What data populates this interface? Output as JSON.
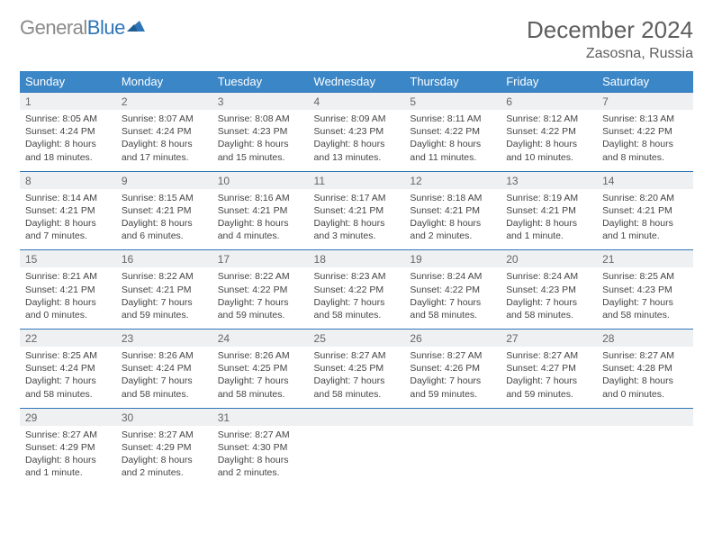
{
  "brand": {
    "gray": "General",
    "blue": "Blue"
  },
  "title": "December 2024",
  "location": "Zasosna, Russia",
  "colors": {
    "header_bg": "#3b86c6",
    "header_text": "#ffffff",
    "daynum_bg": "#eef0f1",
    "row_border": "#2f76b8",
    "body_text": "#444444",
    "title_text": "#5e5e5e",
    "logo_gray": "#8a8a8a",
    "logo_blue": "#2f76b8"
  },
  "weekdays": [
    "Sunday",
    "Monday",
    "Tuesday",
    "Wednesday",
    "Thursday",
    "Friday",
    "Saturday"
  ],
  "weeks": [
    [
      {
        "n": "1",
        "sunrise": "8:05 AM",
        "sunset": "4:24 PM",
        "daylight": "8 hours and 18 minutes."
      },
      {
        "n": "2",
        "sunrise": "8:07 AM",
        "sunset": "4:24 PM",
        "daylight": "8 hours and 17 minutes."
      },
      {
        "n": "3",
        "sunrise": "8:08 AM",
        "sunset": "4:23 PM",
        "daylight": "8 hours and 15 minutes."
      },
      {
        "n": "4",
        "sunrise": "8:09 AM",
        "sunset": "4:23 PM",
        "daylight": "8 hours and 13 minutes."
      },
      {
        "n": "5",
        "sunrise": "8:11 AM",
        "sunset": "4:22 PM",
        "daylight": "8 hours and 11 minutes."
      },
      {
        "n": "6",
        "sunrise": "8:12 AM",
        "sunset": "4:22 PM",
        "daylight": "8 hours and 10 minutes."
      },
      {
        "n": "7",
        "sunrise": "8:13 AM",
        "sunset": "4:22 PM",
        "daylight": "8 hours and 8 minutes."
      }
    ],
    [
      {
        "n": "8",
        "sunrise": "8:14 AM",
        "sunset": "4:21 PM",
        "daylight": "8 hours and 7 minutes."
      },
      {
        "n": "9",
        "sunrise": "8:15 AM",
        "sunset": "4:21 PM",
        "daylight": "8 hours and 6 minutes."
      },
      {
        "n": "10",
        "sunrise": "8:16 AM",
        "sunset": "4:21 PM",
        "daylight": "8 hours and 4 minutes."
      },
      {
        "n": "11",
        "sunrise": "8:17 AM",
        "sunset": "4:21 PM",
        "daylight": "8 hours and 3 minutes."
      },
      {
        "n": "12",
        "sunrise": "8:18 AM",
        "sunset": "4:21 PM",
        "daylight": "8 hours and 2 minutes."
      },
      {
        "n": "13",
        "sunrise": "8:19 AM",
        "sunset": "4:21 PM",
        "daylight": "8 hours and 1 minute."
      },
      {
        "n": "14",
        "sunrise": "8:20 AM",
        "sunset": "4:21 PM",
        "daylight": "8 hours and 1 minute."
      }
    ],
    [
      {
        "n": "15",
        "sunrise": "8:21 AM",
        "sunset": "4:21 PM",
        "daylight": "8 hours and 0 minutes."
      },
      {
        "n": "16",
        "sunrise": "8:22 AM",
        "sunset": "4:21 PM",
        "daylight": "7 hours and 59 minutes."
      },
      {
        "n": "17",
        "sunrise": "8:22 AM",
        "sunset": "4:22 PM",
        "daylight": "7 hours and 59 minutes."
      },
      {
        "n": "18",
        "sunrise": "8:23 AM",
        "sunset": "4:22 PM",
        "daylight": "7 hours and 58 minutes."
      },
      {
        "n": "19",
        "sunrise": "8:24 AM",
        "sunset": "4:22 PM",
        "daylight": "7 hours and 58 minutes."
      },
      {
        "n": "20",
        "sunrise": "8:24 AM",
        "sunset": "4:23 PM",
        "daylight": "7 hours and 58 minutes."
      },
      {
        "n": "21",
        "sunrise": "8:25 AM",
        "sunset": "4:23 PM",
        "daylight": "7 hours and 58 minutes."
      }
    ],
    [
      {
        "n": "22",
        "sunrise": "8:25 AM",
        "sunset": "4:24 PM",
        "daylight": "7 hours and 58 minutes."
      },
      {
        "n": "23",
        "sunrise": "8:26 AM",
        "sunset": "4:24 PM",
        "daylight": "7 hours and 58 minutes."
      },
      {
        "n": "24",
        "sunrise": "8:26 AM",
        "sunset": "4:25 PM",
        "daylight": "7 hours and 58 minutes."
      },
      {
        "n": "25",
        "sunrise": "8:27 AM",
        "sunset": "4:25 PM",
        "daylight": "7 hours and 58 minutes."
      },
      {
        "n": "26",
        "sunrise": "8:27 AM",
        "sunset": "4:26 PM",
        "daylight": "7 hours and 59 minutes."
      },
      {
        "n": "27",
        "sunrise": "8:27 AM",
        "sunset": "4:27 PM",
        "daylight": "7 hours and 59 minutes."
      },
      {
        "n": "28",
        "sunrise": "8:27 AM",
        "sunset": "4:28 PM",
        "daylight": "8 hours and 0 minutes."
      }
    ],
    [
      {
        "n": "29",
        "sunrise": "8:27 AM",
        "sunset": "4:29 PM",
        "daylight": "8 hours and 1 minute."
      },
      {
        "n": "30",
        "sunrise": "8:27 AM",
        "sunset": "4:29 PM",
        "daylight": "8 hours and 2 minutes."
      },
      {
        "n": "31",
        "sunrise": "8:27 AM",
        "sunset": "4:30 PM",
        "daylight": "8 hours and 2 minutes."
      },
      null,
      null,
      null,
      null
    ]
  ],
  "labels": {
    "sunrise": "Sunrise: ",
    "sunset": "Sunset: ",
    "daylight": "Daylight: "
  }
}
